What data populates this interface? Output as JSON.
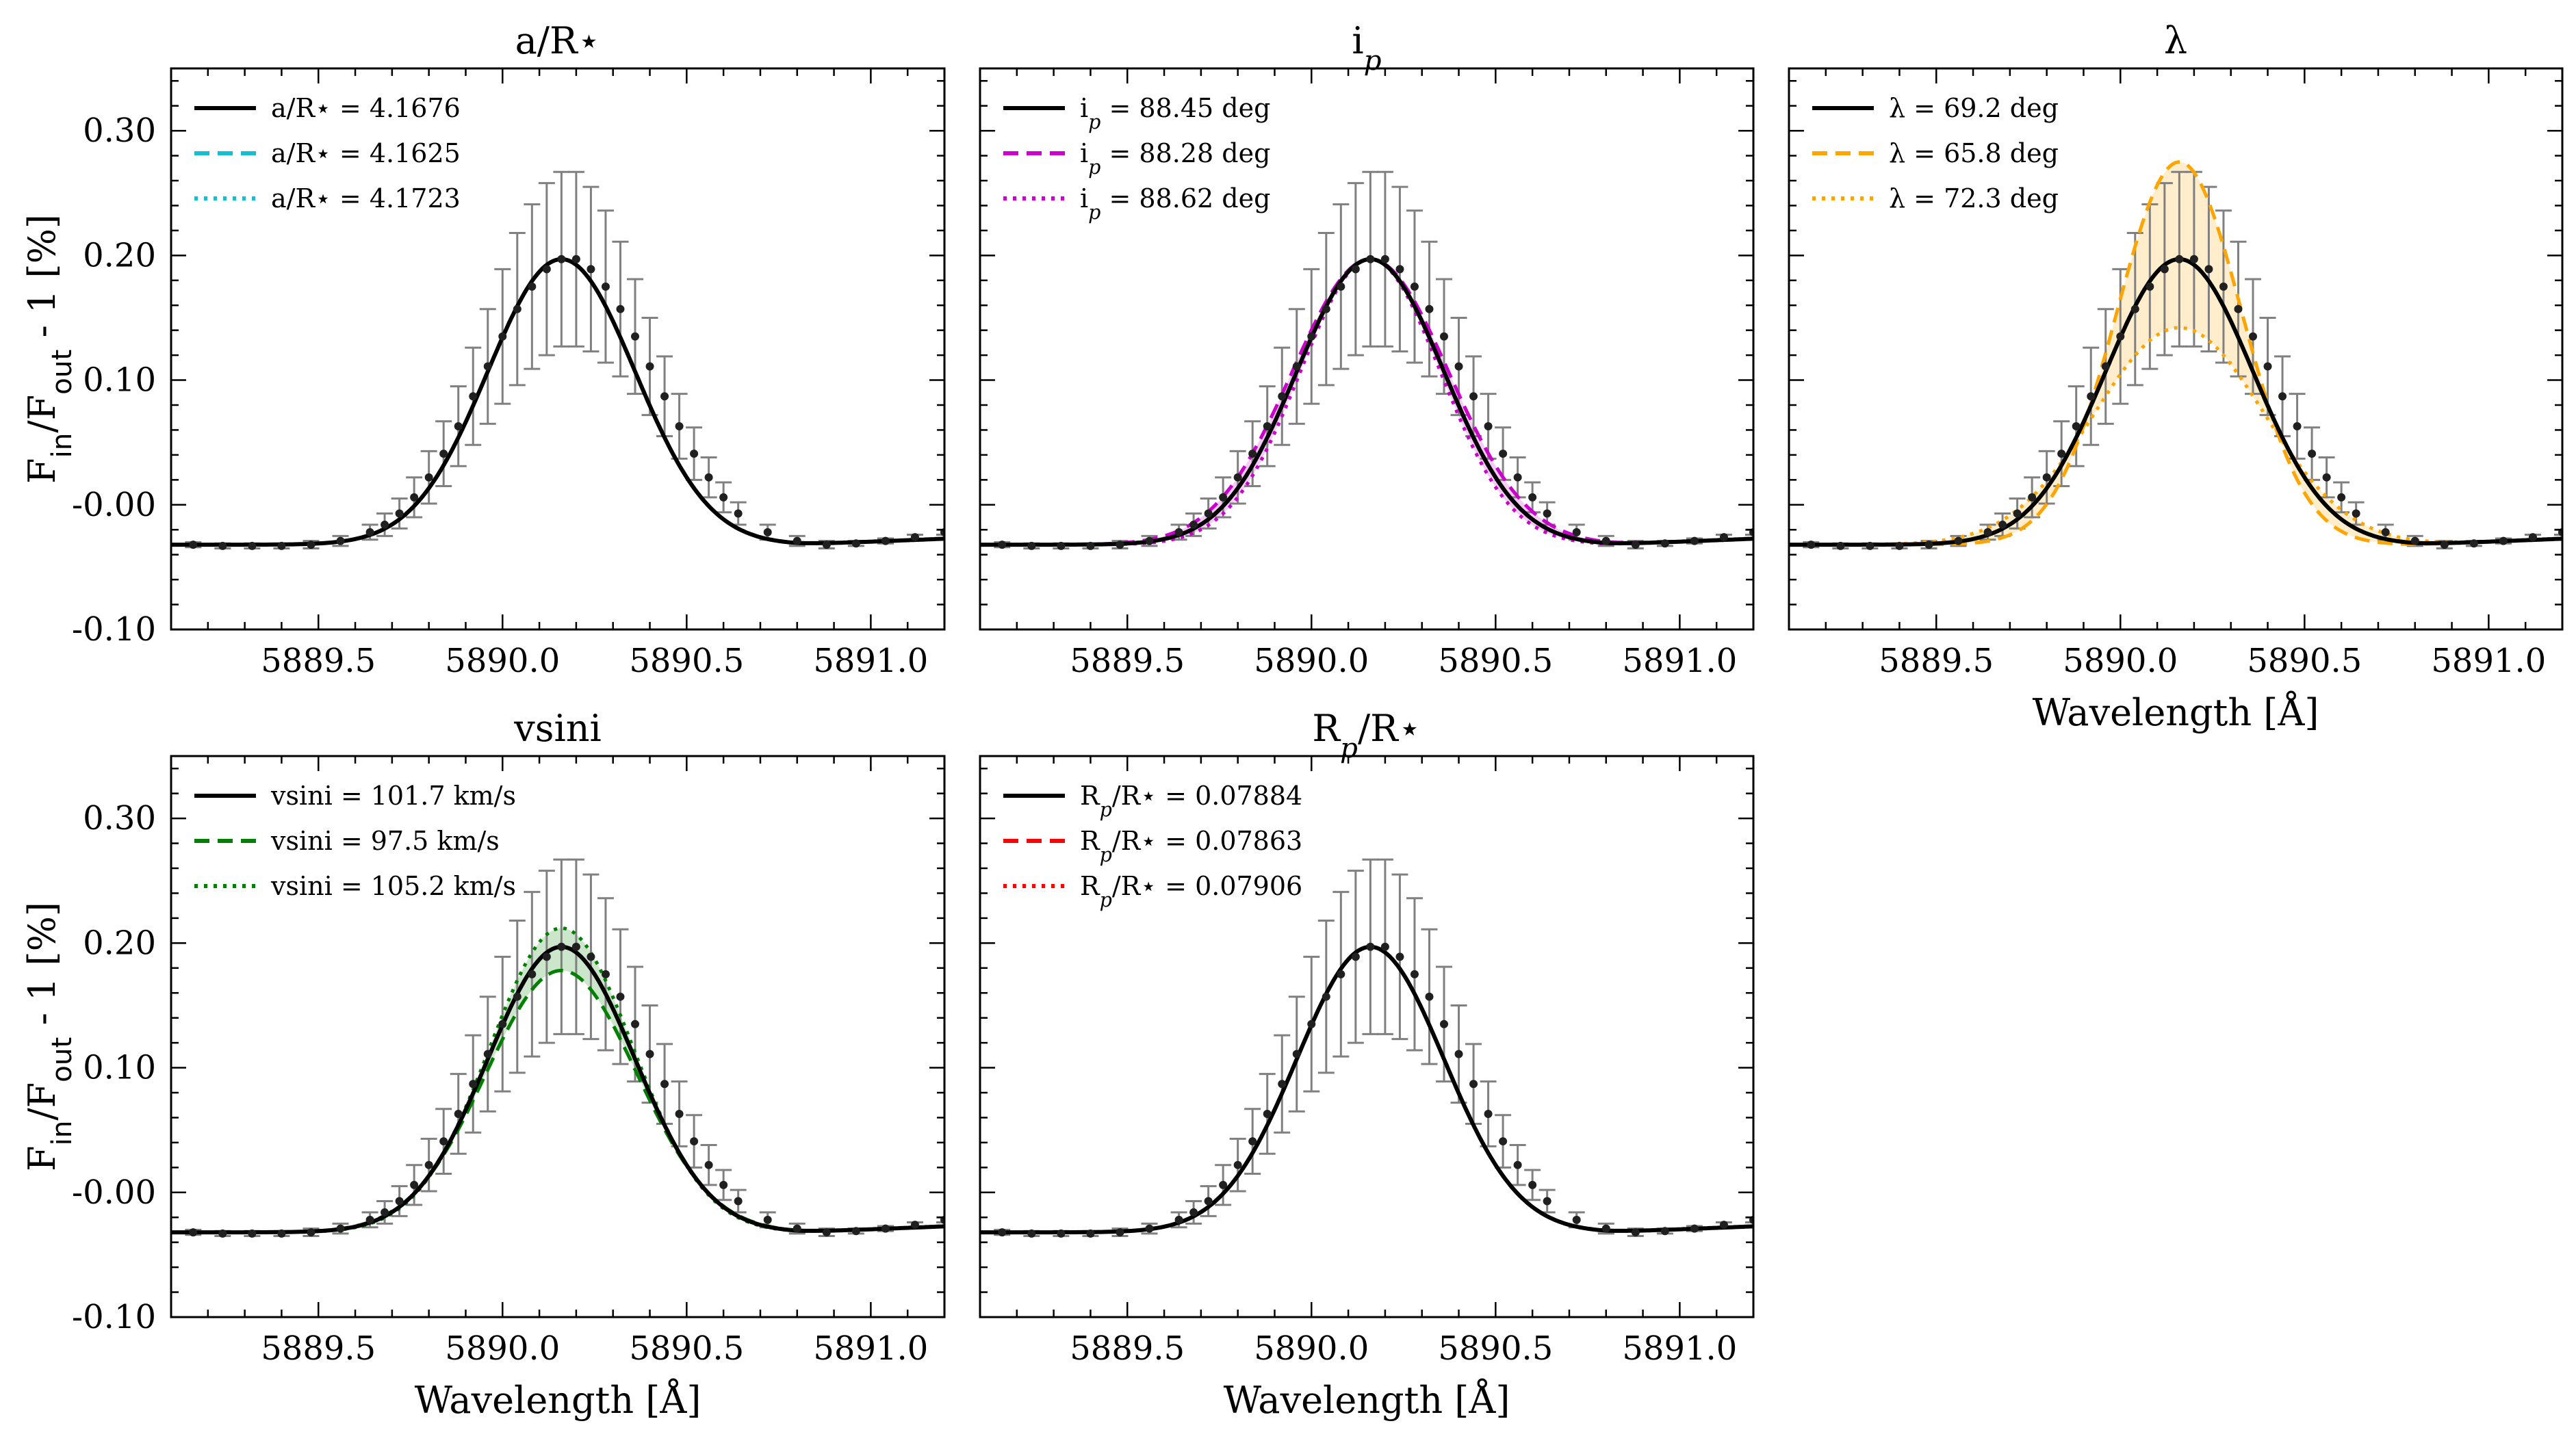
{
  "chart_data": {
    "type": "line",
    "ylabel": "F_in/F_out - 1 [%]",
    "xlabel": "Wavelength [Å]",
    "xlim": [
      5889.1,
      5891.2
    ],
    "ylim": [
      -0.1,
      0.35
    ],
    "xticks": [
      "5889.5",
      "5890.0",
      "5890.5",
      "5891.0"
    ],
    "yticks": [
      "-0.10",
      "-0.00",
      "0.10",
      "0.20",
      "0.30"
    ],
    "grid": false,
    "legend_position": "top-left",
    "line_center_A": 5890.16,
    "continuum_level": -0.032,
    "observations": {
      "description": "gray error bars on black points",
      "x": [
        5889.16,
        5889.24,
        5889.32,
        5889.4,
        5889.48,
        5889.56,
        5889.64,
        5889.68,
        5889.72,
        5889.76,
        5889.8,
        5889.84,
        5889.88,
        5889.92,
        5889.96,
        5890.0,
        5890.04,
        5890.08,
        5890.12,
        5890.16,
        5890.2,
        5890.24,
        5890.28,
        5890.32,
        5890.36,
        5890.4,
        5890.44,
        5890.48,
        5890.52,
        5890.56,
        5890.6,
        5890.64,
        5890.72,
        5890.8,
        5890.88,
        5890.96,
        5891.04,
        5891.12,
        5891.2
      ],
      "y": [
        -0.032,
        -0.033,
        -0.033,
        -0.033,
        -0.032,
        -0.029,
        -0.022,
        -0.016,
        -0.007,
        0.006,
        0.022,
        0.041,
        0.063,
        0.087,
        0.111,
        0.135,
        0.157,
        0.175,
        0.189,
        0.197,
        0.197,
        0.189,
        0.175,
        0.157,
        0.135,
        0.111,
        0.087,
        0.063,
        0.041,
        0.022,
        0.006,
        -0.007,
        -0.022,
        -0.029,
        -0.032,
        -0.031,
        -0.029,
        -0.026,
        -0.022
      ],
      "err": [
        0.002,
        0.002,
        0.002,
        0.002,
        0.003,
        0.004,
        0.006,
        0.009,
        0.012,
        0.016,
        0.021,
        0.026,
        0.032,
        0.039,
        0.046,
        0.054,
        0.061,
        0.066,
        0.069,
        0.07,
        0.07,
        0.066,
        0.061,
        0.054,
        0.046,
        0.039,
        0.032,
        0.026,
        0.021,
        0.016,
        0.012,
        0.009,
        0.006,
        0.004,
        0.003,
        0.002,
        0.002,
        0.002,
        0.002
      ]
    },
    "panels": [
      {
        "title": "a/R⋆",
        "color": "#17becf",
        "show_xlabel": false,
        "legend": [
          "a/R⋆ = 4.1676",
          "a/R⋆ = 4.1625",
          "a/R⋆ = 4.1723"
        ],
        "series": [
          {
            "name": "a/R⋆ = 4.1676",
            "style": "solid",
            "amplitude": 0.229,
            "sigma": 0.2
          },
          {
            "name": "a/R⋆ = 4.1625",
            "style": "dashed",
            "amplitude": 0.229,
            "sigma": 0.2
          },
          {
            "name": "a/R⋆ = 4.1723",
            "style": "dotted",
            "amplitude": 0.229,
            "sigma": 0.2
          }
        ]
      },
      {
        "title": "i_p",
        "color": "#cc00cc",
        "show_xlabel": false,
        "legend": [
          "i_p = 88.45 deg",
          "i_p = 88.28 deg",
          "i_p = 88.62 deg"
        ],
        "series": [
          {
            "name": "i_p = 88.45 deg",
            "style": "solid",
            "amplitude": 0.229,
            "sigma": 0.2
          },
          {
            "name": "i_p = 88.28 deg",
            "style": "dashed",
            "amplitude": 0.229,
            "sigma": 0.212
          },
          {
            "name": "i_p = 88.62 deg",
            "style": "dotted",
            "amplitude": 0.229,
            "sigma": 0.19
          }
        ]
      },
      {
        "title": "λ",
        "color": "#ffa500",
        "show_xlabel": true,
        "legend": [
          "λ = 69.2 deg",
          "λ = 65.8 deg",
          "λ = 72.3 deg"
        ],
        "series": [
          {
            "name": "λ = 69.2 deg",
            "style": "solid",
            "amplitude": 0.229,
            "sigma": 0.2
          },
          {
            "name": "λ = 65.8 deg",
            "style": "dashed",
            "amplitude": 0.307,
            "sigma": 0.17
          },
          {
            "name": "λ = 72.3 deg",
            "style": "dotted",
            "amplitude": 0.174,
            "sigma": 0.23
          }
        ]
      },
      {
        "title": "vsini",
        "color": "#008000",
        "show_xlabel": true,
        "legend": [
          "vsini = 101.7 km/s",
          "vsini = 97.5 km/s",
          "vsini = 105.2 km/s"
        ],
        "series": [
          {
            "name": "vsini = 101.7 km/s",
            "style": "solid",
            "amplitude": 0.229,
            "sigma": 0.2
          },
          {
            "name": "vsini = 97.5 km/s",
            "style": "dashed",
            "amplitude": 0.21,
            "sigma": 0.205
          },
          {
            "name": "vsini = 105.2 km/s",
            "style": "dotted",
            "amplitude": 0.244,
            "sigma": 0.195
          }
        ]
      },
      {
        "title": "R_p/R⋆",
        "color": "#ff0000",
        "show_xlabel": true,
        "legend": [
          "R_p/R⋆ = 0.07884",
          "R_p/R⋆ = 0.07863",
          "R_p/R⋆ = 0.07906"
        ],
        "series": [
          {
            "name": "R_p/R⋆ = 0.07884",
            "style": "solid",
            "amplitude": 0.229,
            "sigma": 0.2
          },
          {
            "name": "R_p/R⋆ = 0.07863",
            "style": "dashed",
            "amplitude": 0.229,
            "sigma": 0.2
          },
          {
            "name": "R_p/R⋆ = 0.07906",
            "style": "dotted",
            "amplitude": 0.229,
            "sigma": 0.2
          }
        ]
      }
    ]
  }
}
